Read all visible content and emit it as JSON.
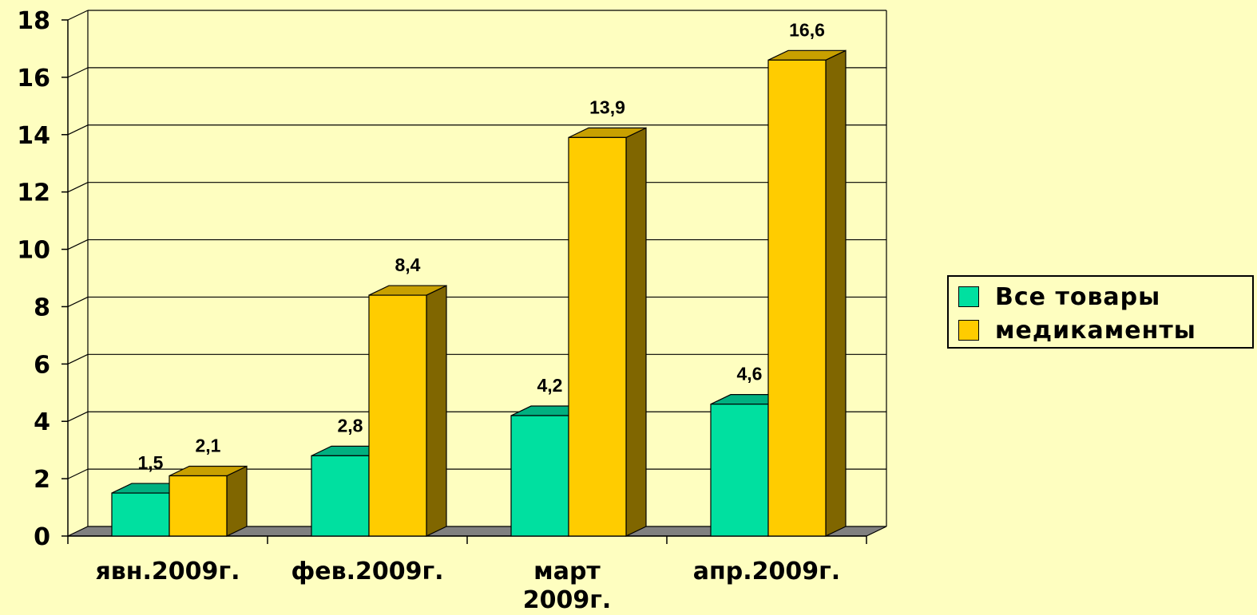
{
  "chart_data": {
    "type": "bar",
    "categories": [
      [
        "явн.2009г."
      ],
      [
        "фев.2009г."
      ],
      [
        "март",
        "2009г."
      ],
      [
        "апр.2009г."
      ]
    ],
    "series": [
      {
        "name": "Все товары",
        "values": [
          1.5,
          2.8,
          4.2,
          4.6
        ],
        "labels": [
          "1,5",
          "2,8",
          "4,2",
          "4,6"
        ],
        "color": "#00e0a0",
        "side_color": "#00a070",
        "top_color": "#00b080"
      },
      {
        "name": "медикаменты",
        "values": [
          2.1,
          8.4,
          13.9,
          16.6
        ],
        "labels": [
          "2,1",
          "8,4",
          "13,9",
          "16,6"
        ],
        "color": "#ffcc00",
        "side_color": "#806600",
        "top_color": "#c8a000"
      }
    ],
    "ylim": [
      0,
      18
    ],
    "yticks": [
      "0",
      "2",
      "4",
      "6",
      "8",
      "10",
      "12",
      "14",
      "16",
      "18"
    ],
    "grid": true,
    "legend_position": "right",
    "floor_color": "#808080"
  }
}
